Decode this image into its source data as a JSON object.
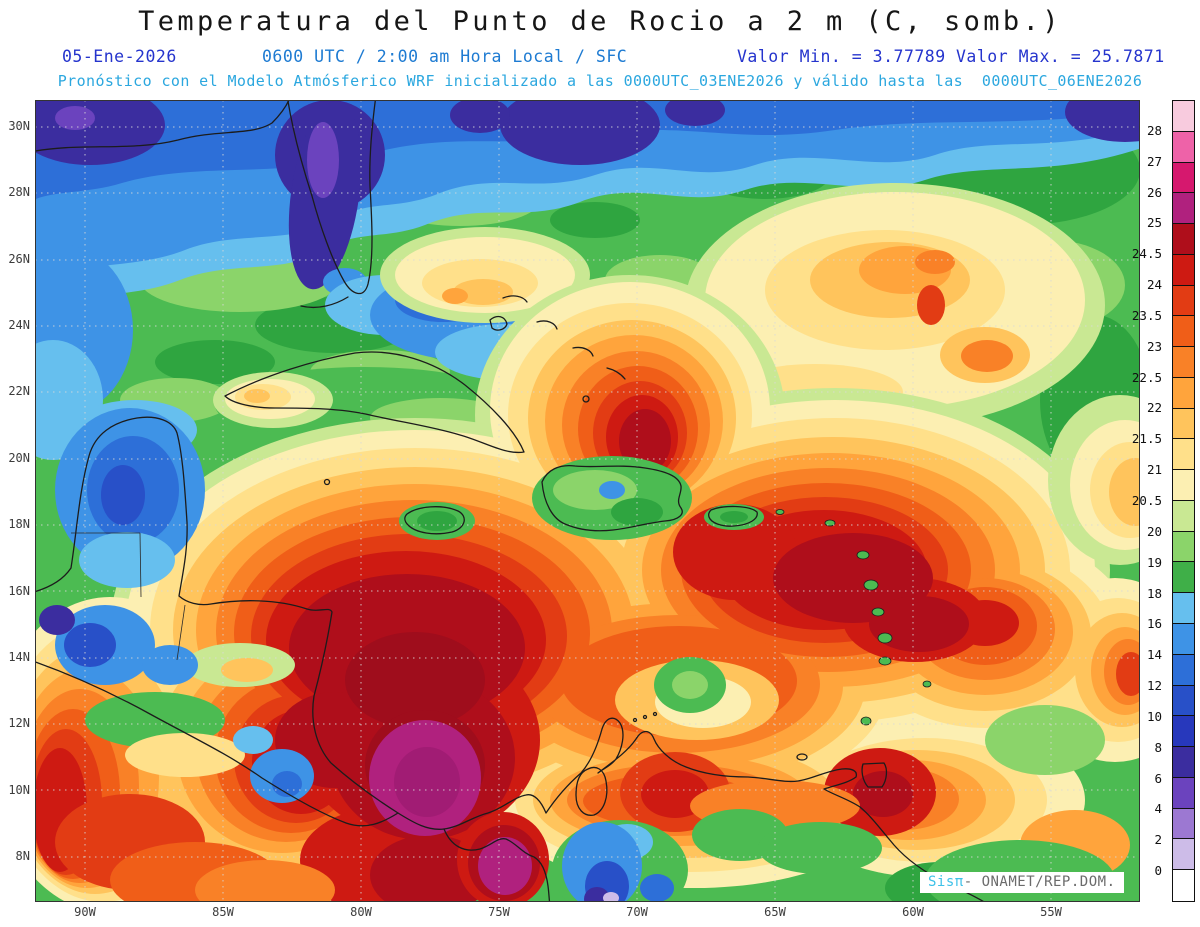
{
  "header": {
    "title": "Temperatura del Punto de Rocio a 2 m (C, somb.)",
    "date": "05-Ene-2026",
    "time_line": "0600 UTC / 2:00 am Hora Local / SFC",
    "min_label": "Valor Min. = 3.77789",
    "max_label": "Valor Max. = 25.7871",
    "model_line": "Pronóstico con el Modelo Atmósferico WRF inicializado a las 0000UTC_03ENE2026 y válido hasta las  0000UTC_06ENE2026"
  },
  "axes": {
    "lat_labels": [
      "30N",
      "28N",
      "26N",
      "24N",
      "22N",
      "20N",
      "18N",
      "16N",
      "14N",
      "12N",
      "10N",
      "8N"
    ],
    "lon_labels": [
      "90W",
      "85W",
      "80W",
      "75W",
      "70W",
      "65W",
      "60W",
      "55W"
    ]
  },
  "colorbar": {
    "tick_labels": [
      "28",
      "27",
      "26",
      "25",
      "24.5",
      "24",
      "23.5",
      "23",
      "22.5",
      "22",
      "21.5",
      "21",
      "20.5",
      "20",
      "19",
      "18",
      "16",
      "14",
      "12",
      "10",
      "8",
      "6",
      "4",
      "2",
      "0"
    ],
    "cell_colors_top_to_bottom": [
      "#F8CBDE",
      "#EE62A8",
      "#D6186E",
      "#B0217E",
      "#AF0E1B",
      "#CE1A12",
      "#E23C14",
      "#F05E18",
      "#F98127",
      "#FFA43C",
      "#FFC45C",
      "#FFE08A",
      "#FCEFB2",
      "#C9E893",
      "#8BD46A",
      "#3FAF48",
      "#66BFEE",
      "#3E93E6",
      "#2D6FD8",
      "#2850C8",
      "#2738BC",
      "#3B2D9F",
      "#6B43BE",
      "#9C78D2",
      "#CDBCE8",
      "#FFFFFF"
    ]
  },
  "watermark": {
    "brand": "Sisπ",
    "separator": "- ",
    "org": "ONAMET/REP.DOM."
  },
  "colors": {
    "header_blue": "#2534CD",
    "header_teal": "#1E7BD2",
    "header_cyan": "#2BA7DF",
    "watermark_cyan": "#3EC1E8"
  },
  "chart_data": {
    "type": "heatmap",
    "title": "Temperatura del Punto de Rocio a 2 m (C, somb.)",
    "variable": "Dew point temperature at 2 m",
    "units": "C",
    "valid_datetime": "05-Ene-2026 0600 UTC / 2:00 am Hora Local / SFC",
    "model_run": "WRF inicializado 0000UTC_03ENE2026",
    "valid_until": "0000UTC_06ENE2026",
    "value_min": 3.77789,
    "value_max": 25.7871,
    "lat_ticks": [
      "30N",
      "28N",
      "26N",
      "24N",
      "22N",
      "20N",
      "18N",
      "16N",
      "14N",
      "12N",
      "10N",
      "8N"
    ],
    "lon_ticks": [
      "90W",
      "85W",
      "80W",
      "75W",
      "70W",
      "65W",
      "60W",
      "55W"
    ],
    "contour_levels": [
      0,
      2,
      4,
      6,
      8,
      10,
      12,
      14,
      16,
      18,
      19,
      20,
      20.5,
      21,
      21.5,
      22,
      22.5,
      23,
      23.5,
      24,
      24.5,
      25,
      26,
      27,
      28
    ],
    "legend_position": "right",
    "grid": "dotted graticule every 2 deg lat / 5 deg lon"
  }
}
